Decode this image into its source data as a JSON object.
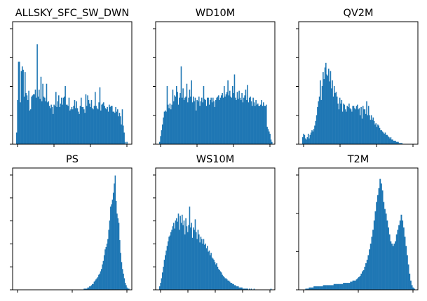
{
  "figure": {
    "bar_color": "#1f77b4",
    "axes_color": "#000000",
    "background": "#ffffff"
  },
  "chart_data": [
    {
      "type": "bar",
      "title": "ALLSKY_SFC_SW_DWN",
      "xlabel": "",
      "ylabel": "",
      "tick_labels_shown": false,
      "grid": false,
      "x_ticks": 4,
      "y_ticks": 5,
      "values": [
        0,
        0,
        0,
        0.1,
        0.38,
        0.71,
        0.71,
        0.36,
        0.63,
        0.67,
        0.64,
        0.41,
        0.62,
        0.44,
        0.42,
        0.38,
        0.46,
        0.29,
        0.3,
        0.41,
        0.42,
        0.43,
        0.43,
        0.47,
        0.4,
        0.86,
        0.41,
        0.47,
        0.39,
        0.58,
        0.37,
        0.52,
        0.41,
        0.4,
        0.37,
        0.52,
        0.36,
        0.37,
        0.33,
        0.31,
        0.34,
        0.32,
        0.26,
        0.34,
        0.33,
        0.45,
        0.32,
        0.37,
        0.42,
        0.32,
        0.35,
        0.4,
        0.34,
        0.4,
        0.41,
        0.5,
        0.34,
        0.34,
        0.33,
        0.4,
        0.29,
        0.3,
        0.32,
        0.3,
        0.33,
        0.38,
        0.31,
        0.37,
        0.31,
        0.28,
        0.26,
        0.33,
        0.4,
        0.32,
        0.32,
        0.3,
        0.27,
        0.43,
        0.33,
        0.42,
        0.38,
        0.35,
        0.32,
        0.38,
        0.31,
        0.3,
        0.33,
        0.45,
        0.33,
        0.31,
        0.3,
        0.36,
        0.49,
        0.29,
        0.34,
        0.35,
        0.36,
        0.33,
        0.31,
        0.3,
        0.32,
        0.28,
        0.34,
        0.32,
        0.33,
        0.33,
        0.28,
        0.28,
        0.27,
        0.32,
        0.28,
        0.3,
        0.24,
        0.27,
        0.24,
        0.17,
        0.3,
        0.16,
        0.1,
        0.02,
        0.0,
        0.02,
        0.0,
        0,
        0,
        0
      ]
    },
    {
      "type": "bar",
      "title": "WD10M",
      "xlabel": "",
      "ylabel": "",
      "tick_labels_shown": false,
      "grid": false,
      "x_ticks": 4,
      "y_ticks": 5,
      "values": [
        0,
        0,
        0,
        0.02,
        0.07,
        0.12,
        0.17,
        0.23,
        0.28,
        0.29,
        0.28,
        0.5,
        0.34,
        0.31,
        0.35,
        0.3,
        0.34,
        0.47,
        0.37,
        0.42,
        0.41,
        0.5,
        0.45,
        0.34,
        0.4,
        0.44,
        0.67,
        0.4,
        0.48,
        0.38,
        0.4,
        0.41,
        0.52,
        0.36,
        0.4,
        0.47,
        0.41,
        0.55,
        0.36,
        0.41,
        0.37,
        0.4,
        0.29,
        0.38,
        0.37,
        0.41,
        0.33,
        0.37,
        0.4,
        0.36,
        0.5,
        0.39,
        0.38,
        0.33,
        0.4,
        0.4,
        0.34,
        0.38,
        0.4,
        0.36,
        0.4,
        0.37,
        0.32,
        0.38,
        0.4,
        0.41,
        0.42,
        0.38,
        0.4,
        0.42,
        0.44,
        0.4,
        0.5,
        0.41,
        0.43,
        0.45,
        0.55,
        0.42,
        0.46,
        0.41,
        0.4,
        0.5,
        0.44,
        0.6,
        0.4,
        0.38,
        0.45,
        0.39,
        0.46,
        0.4,
        0.38,
        0.44,
        0.36,
        0.4,
        0.42,
        0.47,
        0.38,
        0.51,
        0.36,
        0.4,
        0.41,
        0.37,
        0.33,
        0.4,
        0.36,
        0.33,
        0.38,
        0.34,
        0.35,
        0.33,
        0.33,
        0.34,
        0.38,
        0.33,
        0.36,
        0.33,
        0.33,
        0.34,
        0.15,
        0.13,
        0.11,
        0.09,
        0.04,
        0.02,
        0,
        0
      ]
    },
    {
      "type": "bar",
      "title": "QV2M",
      "xlabel": "",
      "ylabel": "",
      "tick_labels_shown": false,
      "grid": false,
      "x_ticks": 4,
      "y_ticks": 5,
      "values": [
        0,
        0,
        0,
        0.06,
        0.09,
        0.08,
        0.05,
        0.04,
        0.06,
        0.09,
        0.05,
        0.08,
        0.1,
        0.12,
        0.11,
        0.13,
        0.16,
        0.2,
        0.25,
        0.32,
        0.37,
        0.41,
        0.55,
        0.38,
        0.5,
        0.62,
        0.56,
        0.66,
        0.7,
        0.6,
        0.59,
        0.65,
        0.54,
        0.63,
        0.48,
        0.55,
        0.41,
        0.5,
        0.44,
        0.45,
        0.41,
        0.35,
        0.3,
        0.4,
        0.35,
        0.38,
        0.28,
        0.35,
        0.34,
        0.3,
        0.28,
        0.33,
        0.32,
        0.35,
        0.31,
        0.3,
        0.28,
        0.33,
        0.33,
        0.31,
        0.3,
        0.33,
        0.34,
        0.3,
        0.31,
        0.25,
        0.32,
        0.22,
        0.33,
        0.3,
        0.3,
        0.26,
        0.37,
        0.25,
        0.33,
        0.25,
        0.21,
        0.25,
        0.21,
        0.23,
        0.2,
        0.17,
        0.18,
        0.15,
        0.17,
        0.16,
        0.14,
        0.12,
        0.12,
        0.11,
        0.1,
        0.09,
        0.1,
        0.08,
        0.08,
        0.07,
        0.06,
        0.05,
        0.06,
        0.04,
        0.04,
        0.03,
        0.03,
        0.03,
        0.02,
        0.02,
        0.02,
        0.01,
        0.01,
        0.01,
        0.01,
        0.0,
        0.0,
        0.0,
        0.0,
        0.0,
        0.0,
        0.0,
        0.0,
        0,
        0,
        0,
        0,
        0,
        0,
        0,
        0
      ]
    },
    {
      "type": "bar",
      "title": "PS",
      "xlabel": "",
      "ylabel": "",
      "tick_labels_shown": false,
      "grid": false,
      "x_ticks": 3,
      "y_ticks": 6,
      "values": [
        0,
        0,
        0,
        0,
        0,
        0,
        0,
        0,
        0,
        0,
        0,
        0,
        0,
        0,
        0,
        0,
        0,
        0,
        0,
        0,
        0,
        0,
        0,
        0,
        0,
        0,
        0,
        0,
        0,
        0,
        0,
        0,
        0,
        0,
        0,
        0,
        0,
        0,
        0,
        0,
        0,
        0,
        0,
        0,
        0,
        0,
        0,
        0,
        0,
        0,
        0,
        0,
        0,
        0,
        0,
        0,
        0,
        0,
        0,
        0,
        0,
        0,
        0,
        0,
        0,
        0,
        0,
        0,
        0,
        0,
        0,
        0,
        0,
        0,
        0,
        0.0,
        0.0,
        0.01,
        0.01,
        0.01,
        0.01,
        0.02,
        0.02,
        0.03,
        0.03,
        0.04,
        0.05,
        0.05,
        0.07,
        0.08,
        0.09,
        0.1,
        0.11,
        0.13,
        0.14,
        0.16,
        0.18,
        0.22,
        0.25,
        0.3,
        0.35,
        0.37,
        0.4,
        0.44,
        0.52,
        0.6,
        0.72,
        0.74,
        0.78,
        0.84,
        0.92,
        0.99,
        0.77,
        0.66,
        0.62,
        0.58,
        0.43,
        0.32,
        0.24,
        0.18,
        0.14,
        0.1,
        0.06,
        0.04,
        0.02,
        0.01,
        0.01,
        0,
        0
      ]
    },
    {
      "type": "bar",
      "title": "WS10M",
      "xlabel": "",
      "ylabel": "",
      "tick_labels_shown": false,
      "grid": false,
      "x_ticks": 5,
      "y_ticks": 6,
      "values": [
        0,
        0,
        0,
        0.03,
        0.06,
        0.1,
        0.15,
        0.2,
        0.26,
        0.3,
        0.34,
        0.38,
        0.42,
        0.46,
        0.47,
        0.5,
        0.52,
        0.55,
        0.58,
        0.53,
        0.6,
        0.62,
        0.59,
        0.66,
        0.52,
        0.64,
        0.58,
        0.65,
        0.56,
        0.6,
        0.48,
        0.62,
        0.55,
        0.5,
        0.56,
        0.72,
        0.54,
        0.58,
        0.45,
        0.54,
        0.52,
        0.61,
        0.5,
        0.44,
        0.52,
        0.48,
        0.41,
        0.46,
        0.44,
        0.4,
        0.44,
        0.39,
        0.4,
        0.36,
        0.38,
        0.33,
        0.34,
        0.3,
        0.32,
        0.28,
        0.27,
        0.26,
        0.24,
        0.22,
        0.23,
        0.2,
        0.18,
        0.17,
        0.16,
        0.15,
        0.13,
        0.12,
        0.11,
        0.1,
        0.1,
        0.09,
        0.08,
        0.08,
        0.07,
        0.06,
        0.06,
        0.05,
        0.05,
        0.04,
        0.04,
        0.03,
        0.03,
        0.03,
        0.02,
        0.02,
        0.02,
        0.02,
        0.01,
        0.01,
        0.01,
        0.01,
        0.01,
        0.01,
        0.0,
        0.01,
        0.0,
        0.01,
        0.0,
        0.0,
        0.01,
        0.0,
        0.0,
        0.0,
        0,
        0,
        0,
        0,
        0,
        0,
        0,
        0,
        0,
        0,
        0,
        0,
        0,
        0,
        0.01,
        0,
        0,
        0
      ]
    },
    {
      "type": "bar",
      "title": "T2M",
      "xlabel": "",
      "ylabel": "",
      "tick_labels_shown": false,
      "grid": false,
      "x_ticks": 3,
      "y_ticks": 4,
      "values": [
        0,
        0,
        0,
        0.0,
        0.0,
        0.01,
        0.01,
        0.01,
        0.02,
        0.02,
        0.02,
        0.02,
        0.03,
        0.03,
        0.03,
        0.03,
        0.03,
        0.03,
        0.03,
        0.03,
        0.04,
        0.04,
        0.04,
        0.04,
        0.04,
        0.04,
        0.04,
        0.04,
        0.04,
        0.05,
        0.05,
        0.05,
        0.05,
        0.05,
        0.05,
        0.05,
        0.05,
        0.06,
        0.06,
        0.06,
        0.06,
        0.06,
        0.06,
        0.07,
        0.07,
        0.08,
        0.08,
        0.08,
        0.09,
        0.1,
        0.11,
        0.12,
        0.14,
        0.16,
        0.17,
        0.2,
        0.23,
        0.26,
        0.3,
        0.35,
        0.4,
        0.46,
        0.52,
        0.6,
        0.68,
        0.76,
        0.82,
        0.88,
        0.96,
        0.92,
        0.86,
        0.76,
        0.7,
        0.66,
        0.6,
        0.54,
        0.48,
        0.42,
        0.4,
        0.38,
        0.4,
        0.42,
        0.48,
        0.52,
        0.56,
        0.6,
        0.65,
        0.6,
        0.54,
        0.46,
        0.38,
        0.3,
        0.22,
        0.14,
        0.08,
        0.04,
        0.02,
        0.01,
        0,
        0
      ]
    }
  ]
}
